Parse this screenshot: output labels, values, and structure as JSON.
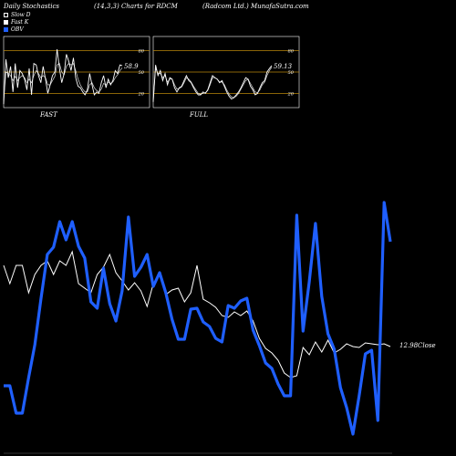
{
  "header": {
    "left": "Daily Stochastics",
    "center": "(14,3,3) Charts for RDCM",
    "right": "(Radcom Ltd.) MunafaSutra.com"
  },
  "legend": [
    {
      "label": "Slow  D",
      "color": "#ffffff",
      "style": "outline"
    },
    {
      "label": "Fast  K",
      "color": "#ffffff",
      "style": "filled"
    },
    {
      "label": "OBV",
      "color": "#1f5fff",
      "style": "filled"
    }
  ],
  "colors": {
    "background": "#000000",
    "obv": "#1f5fff",
    "price": "#ffffff",
    "level": "#b8860b"
  },
  "chart_data": [
    {
      "type": "line",
      "title": "FAST",
      "yticks": [
        20,
        50,
        80
      ],
      "ylim": [
        0,
        100
      ],
      "last_value_label": "58.9",
      "series": [
        {
          "values": [
            5,
            68,
            42,
            58,
            22,
            62,
            28,
            52,
            48,
            40,
            25,
            55,
            18,
            62,
            60,
            45,
            35,
            58,
            40,
            20,
            32,
            45,
            50,
            82,
            55,
            35,
            48,
            75,
            65,
            52,
            70,
            42,
            30,
            28,
            22,
            18,
            25,
            48,
            32,
            18,
            22,
            20,
            35,
            45,
            28,
            40,
            32,
            38,
            52,
            48,
            60,
            58.9
          ]
        },
        {
          "values": [
            10,
            50,
            48,
            45,
            38,
            44,
            38,
            42,
            45,
            42,
            35,
            40,
            35,
            45,
            52,
            48,
            42,
            45,
            42,
            32,
            32,
            38,
            44,
            60,
            62,
            50,
            46,
            58,
            62,
            60,
            62,
            52,
            40,
            32,
            26,
            22,
            22,
            32,
            35,
            28,
            24,
            22,
            26,
            34,
            32,
            36,
            34,
            36,
            42,
            46,
            52,
            56
          ]
        }
      ]
    },
    {
      "type": "line",
      "title": "FULL",
      "yticks": [
        20,
        50,
        80
      ],
      "ylim": [
        0,
        100
      ],
      "last_value_label": "59.13",
      "series": [
        {
          "values": [
            8,
            60,
            45,
            52,
            38,
            48,
            32,
            42,
            40,
            28,
            22,
            28,
            30,
            38,
            45,
            38,
            35,
            28,
            22,
            18,
            18,
            22,
            20,
            25,
            35,
            45,
            42,
            40,
            35,
            38,
            30,
            22,
            16,
            12,
            14,
            18,
            22,
            28,
            35,
            42,
            40,
            30,
            25,
            18,
            20,
            28,
            35,
            38,
            50,
            55,
            59.13
          ]
        },
        {
          "values": [
            10,
            55,
            48,
            48,
            42,
            45,
            36,
            40,
            40,
            32,
            26,
            27,
            29,
            35,
            42,
            40,
            36,
            30,
            25,
            20,
            19,
            20,
            21,
            24,
            32,
            42,
            42,
            40,
            36,
            36,
            32,
            25,
            19,
            15,
            14,
            16,
            20,
            26,
            32,
            38,
            40,
            34,
            28,
            22,
            21,
            25,
            32,
            36,
            45,
            52,
            57
          ]
        }
      ]
    },
    {
      "type": "line",
      "title": "",
      "series": [
        {
          "name": "OBV",
          "values": [
            423,
            423,
            453,
            453,
            414,
            378,
            327,
            279,
            271,
            243,
            263,
            243,
            270,
            283,
            331,
            338,
            294,
            333,
            352,
            319,
            238,
            303,
            293,
            279,
            314,
            299,
            321,
            350,
            372,
            372,
            339,
            338,
            353,
            358,
            371,
            375,
            335,
            338,
            330,
            327,
            362,
            379,
            398,
            404,
            421,
            434,
            434,
            236,
            363,
            309,
            245,
            325,
            366,
            383,
            425,
            447,
            476,
            434,
            388,
            384,
            461,
            222,
            265
          ]
        },
        {
          "name": "Close",
          "values": [
            291,
            311,
            291,
            291,
            321,
            301,
            291,
            286,
            301,
            286,
            291,
            276,
            311,
            316,
            321,
            301,
            293,
            279,
            299,
            308,
            318,
            310,
            319,
            336,
            311,
            301,
            323,
            318,
            316,
            331,
            321,
            291,
            328,
            332,
            337,
            346,
            348,
            342,
            346,
            341,
            352,
            371,
            382,
            387,
            395,
            409,
            414,
            412,
            381,
            389,
            375,
            386,
            373,
            387,
            383,
            377,
            380,
            381,
            376,
            377,
            378,
            377,
            380
          ]
        }
      ],
      "last_value_label": "12.98Close"
    }
  ]
}
